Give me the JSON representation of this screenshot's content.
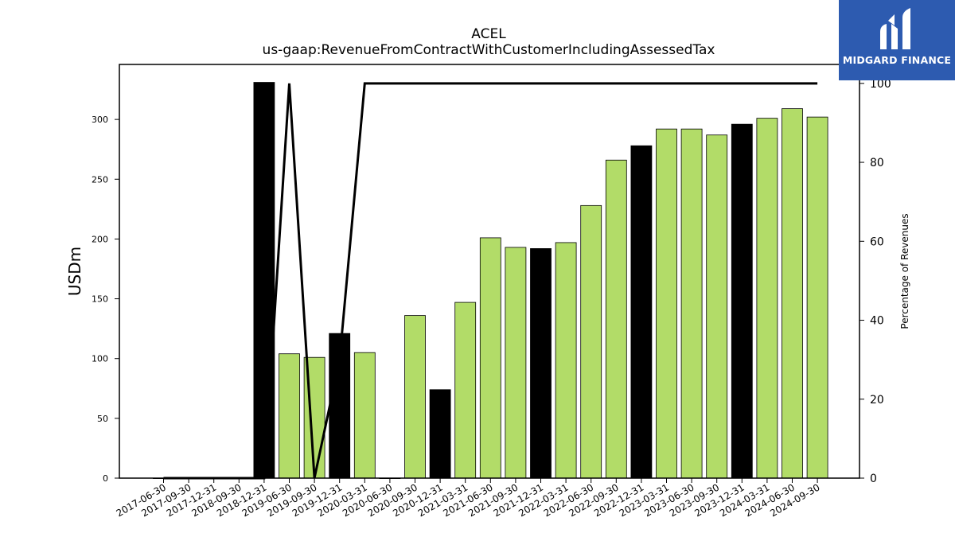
{
  "logo": {
    "text": "MIDGARD FINANCE"
  },
  "chart_data": {
    "type": "bar",
    "title": "ACEL",
    "subtitle": "us-gaap:RevenueFromContractWithCustomerIncludingAssessedTax",
    "ylabel": "USDm",
    "ylabel_right": "Percentage of Revenues",
    "ylim": [
      0,
      346
    ],
    "ylim_right": [
      0,
      104.8
    ],
    "yticks": [
      0,
      50,
      100,
      150,
      200,
      250,
      300
    ],
    "yticks_right": [
      0,
      20,
      40,
      60,
      80,
      100
    ],
    "grid": false,
    "categories": [
      "2017-06-30",
      "2017-09-30",
      "2017-12-31",
      "2018-09-30",
      "2018-12-31",
      "2019-06-30",
      "2019-09-30",
      "2019-12-31",
      "2020-03-31",
      "2020-06-30",
      "2020-09-30",
      "2020-12-31",
      "2021-03-31",
      "2021-06-30",
      "2021-09-30",
      "2021-12-31",
      "2022-03-31",
      "2022-06-30",
      "2022-09-30",
      "2022-12-31",
      "2023-03-31",
      "2023-06-30",
      "2023-09-30",
      "2023-12-31",
      "2024-03-31",
      "2024-06-30",
      "2024-09-30"
    ],
    "series": [
      {
        "kind": "bar",
        "values": [
          0,
          0,
          0,
          0,
          331,
          104,
          101,
          121,
          105,
          0,
          136,
          74,
          147,
          201,
          193,
          192,
          197,
          228,
          266,
          278,
          292,
          292,
          287,
          296,
          301,
          309,
          302
        ],
        "highlight": [
          false,
          false,
          false,
          false,
          true,
          false,
          false,
          true,
          false,
          false,
          false,
          true,
          false,
          false,
          false,
          true,
          false,
          false,
          false,
          true,
          false,
          false,
          false,
          true,
          false,
          false,
          false
        ],
        "color": "#b2dc68",
        "highlight_color": "#000000"
      },
      {
        "kind": "line",
        "axis": "right",
        "values": [
          0,
          0,
          0,
          0,
          0,
          100,
          0,
          30,
          100,
          100,
          100,
          100,
          100,
          100,
          100,
          100,
          100,
          100,
          100,
          100,
          100,
          100,
          100,
          100,
          100,
          100,
          100
        ],
        "color": "#000000"
      }
    ]
  }
}
